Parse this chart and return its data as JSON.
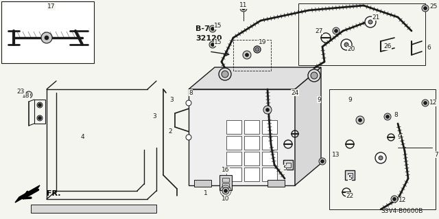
{
  "bg_color": "#f5f5f0",
  "line_color": "#1a1a1a",
  "diagram_code": "S3V4-B0600B",
  "fr_label": "FR.",
  "bold_label_line1": "B-7",
  "bold_label_line2": "32120"
}
